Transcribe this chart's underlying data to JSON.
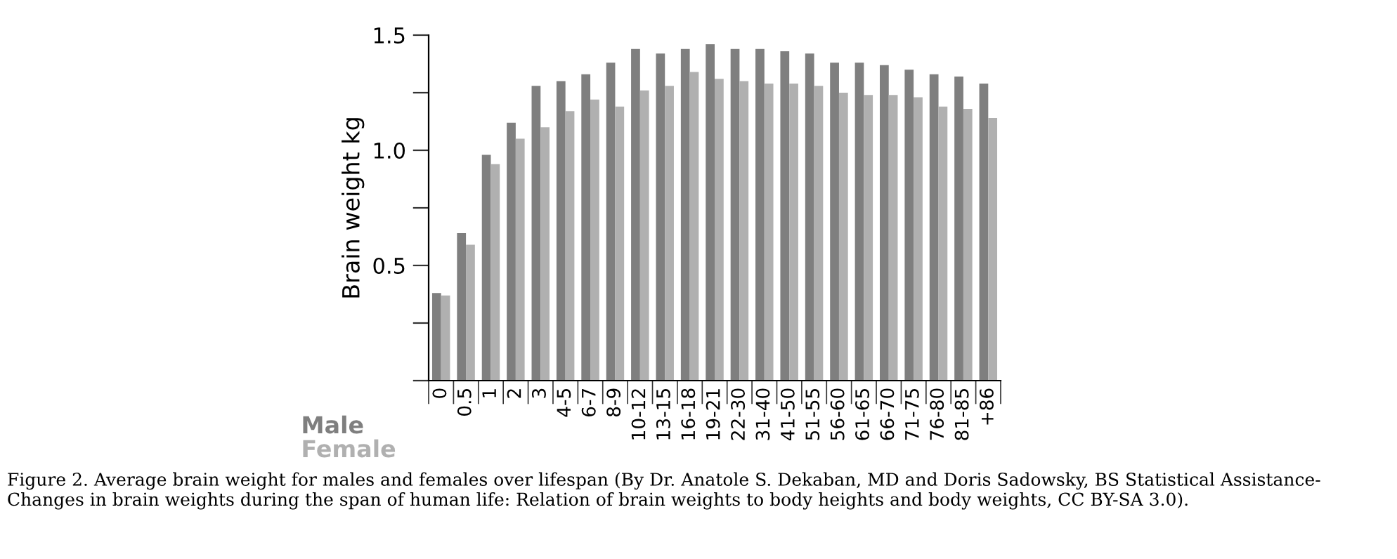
{
  "chart_data": {
    "type": "bar",
    "ylabel": "Brain weight kg",
    "categories": [
      "0",
      "0.5",
      "1",
      "2",
      "3",
      "4-5",
      "6-7",
      "8-9",
      "10-12",
      "13-15",
      "16-18",
      "19-21",
      "22-30",
      "31-40",
      "41-50",
      "51-55",
      "56-60",
      "61-65",
      "66-70",
      "71-75",
      "76-80",
      "81-85",
      "+86"
    ],
    "series": [
      {
        "name": "Male",
        "color": "#7f7f7f",
        "values": [
          0.38,
          0.64,
          0.98,
          1.12,
          1.28,
          1.3,
          1.33,
          1.38,
          1.44,
          1.42,
          1.44,
          1.46,
          1.44,
          1.44,
          1.43,
          1.42,
          1.38,
          1.38,
          1.37,
          1.35,
          1.33,
          1.32,
          1.29
        ]
      },
      {
        "name": "Female",
        "color": "#b0b0b0",
        "values": [
          0.37,
          0.59,
          0.94,
          1.05,
          1.1,
          1.17,
          1.22,
          1.19,
          1.26,
          1.28,
          1.34,
          1.31,
          1.3,
          1.29,
          1.29,
          1.28,
          1.25,
          1.24,
          1.24,
          1.23,
          1.19,
          1.18,
          1.14
        ]
      }
    ],
    "ylim": [
      0,
      1.5
    ],
    "yticks": [
      {
        "value": 0,
        "label": null
      },
      {
        "value": 0.25,
        "label": null
      },
      0.5,
      {
        "value": 0.75,
        "label": null
      },
      {
        "value": 1.0,
        "label": "1.0"
      },
      {
        "value": 1.25,
        "label": null
      },
      1.5
    ],
    "legend": "bottom left",
    "grid": false,
    "annotations": [
      "Figure 2. Average brain weight for males and females over lifespan (By Dr. Anatole S. Dekaban, MD and Doris Sadowsky, BS Statistical Assistance- Changes in brain weights during the span of human life: Relation of brain weights to body heights and body weights, CC BY-SA 3.0)."
    ]
  }
}
